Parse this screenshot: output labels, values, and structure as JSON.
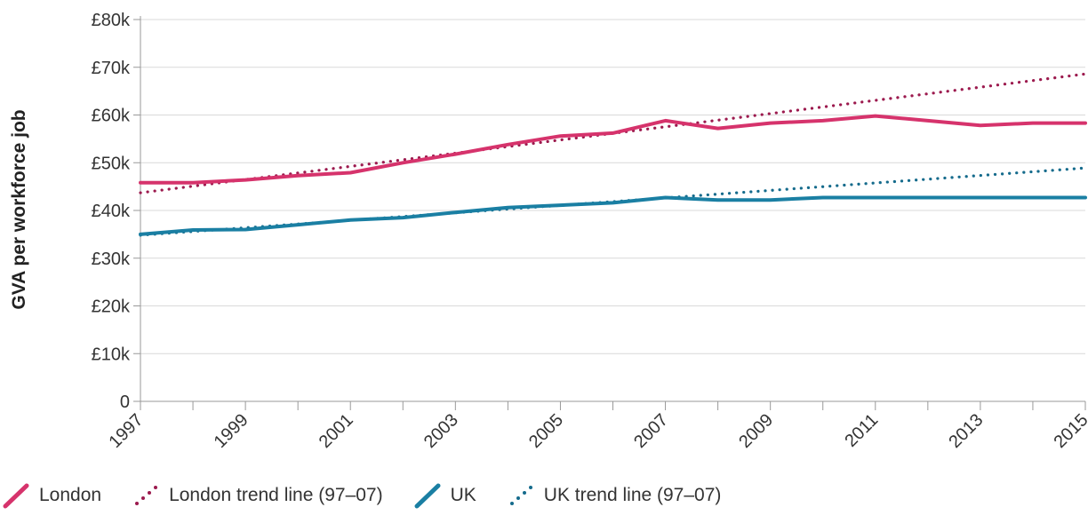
{
  "chart_data": {
    "type": "line",
    "ylabel": "GVA per workforce job",
    "xlabel": "",
    "ylim": [
      0,
      80000
    ],
    "xlim": [
      1997,
      2015
    ],
    "y_ticks": [
      {
        "value": 0,
        "label": "0"
      },
      {
        "value": 10000,
        "label": "£10k"
      },
      {
        "value": 20000,
        "label": "£20k"
      },
      {
        "value": 30000,
        "label": "£30k"
      },
      {
        "value": 40000,
        "label": "£40k"
      },
      {
        "value": 50000,
        "label": "£50k"
      },
      {
        "value": 60000,
        "label": "£60k"
      },
      {
        "value": 70000,
        "label": "£70k"
      },
      {
        "value": 80000,
        "label": "£80k"
      }
    ],
    "x_tick_labels": [
      "1997",
      "1999",
      "2001",
      "2003",
      "2005",
      "2007",
      "2009",
      "2011",
      "2013",
      "2015"
    ],
    "x_minor_ticks": [
      1998,
      2000,
      2002,
      2004,
      2006,
      2008,
      2010,
      2012,
      2014
    ],
    "grid": "horizontal",
    "legend_position": "bottom",
    "series": [
      {
        "name": "London",
        "style": "solid",
        "color": "#d6336c",
        "x": [
          1997,
          1998,
          1999,
          2000,
          2001,
          2002,
          2003,
          2004,
          2005,
          2006,
          2007,
          2008,
          2009,
          2010,
          2011,
          2012,
          2013,
          2014,
          2015
        ],
        "y": [
          45800,
          45800,
          46400,
          47300,
          47900,
          50000,
          51800,
          53800,
          55600,
          56200,
          58800,
          57200,
          58300,
          58800,
          59800,
          58800,
          57800,
          58300,
          58300
        ]
      },
      {
        "name": "London trend line (97–07)",
        "style": "dotted",
        "color": "#9c1a4e",
        "x": [
          1997,
          2015
        ],
        "y": [
          43700,
          68600
        ]
      },
      {
        "name": "UK",
        "style": "solid",
        "color": "#1a7fa3",
        "x": [
          1997,
          1998,
          1999,
          2000,
          2001,
          2002,
          2003,
          2004,
          2005,
          2006,
          2007,
          2008,
          2009,
          2010,
          2011,
          2012,
          2013,
          2014,
          2015
        ],
        "y": [
          35000,
          35900,
          36000,
          37000,
          38000,
          38500,
          39600,
          40600,
          41100,
          41600,
          42700,
          42200,
          42200,
          42700,
          42700,
          42700,
          42700,
          42700,
          42700
        ]
      },
      {
        "name": "UK trend line (97–07)",
        "style": "dotted",
        "color": "#156b8c",
        "x": [
          1997,
          2015
        ],
        "y": [
          34800,
          48900
        ]
      }
    ]
  },
  "legend": {
    "london": "London",
    "london_trend": "London trend line (97–07)",
    "uk": "UK",
    "uk_trend": "UK trend line (97–07)"
  }
}
